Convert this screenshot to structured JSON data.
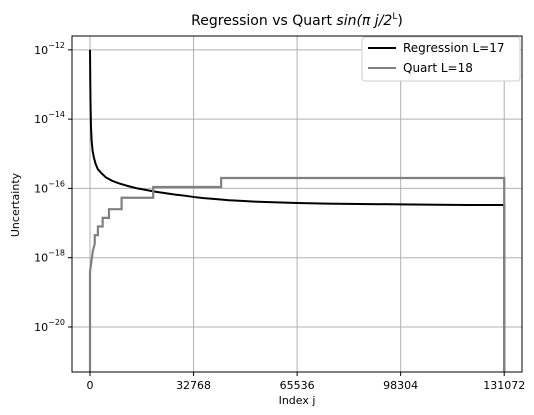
{
  "chart_data": {
    "type": "line",
    "title": {
      "prefix": "Regression vs Quart ",
      "math": "sin(π j/2",
      "superscript": "L",
      "suffix": ")"
    },
    "xlabel": "Index j",
    "ylabel": "Uncertainty",
    "xlim": [
      -5700,
      136700
    ],
    "ylim_log10": [
      -21.3,
      -11.6
    ],
    "y_scale": "log",
    "grid": true,
    "legend_position": "top-right",
    "x_ticks": [
      {
        "value": 0,
        "label": "0"
      },
      {
        "value": 32768,
        "label": "32768"
      },
      {
        "value": 65536,
        "label": "65536"
      },
      {
        "value": 98304,
        "label": "98304"
      },
      {
        "value": 131072,
        "label": "131072"
      }
    ],
    "y_ticks": [
      {
        "value": -12,
        "base": "10",
        "exp": "−12"
      },
      {
        "value": -14,
        "base": "10",
        "exp": "−14"
      },
      {
        "value": -16,
        "base": "10",
        "exp": "−16"
      },
      {
        "value": -18,
        "base": "10",
        "exp": "−18"
      },
      {
        "value": -20,
        "base": "10",
        "exp": "−20"
      }
    ],
    "series": [
      {
        "name": "Regression L=17",
        "color": "#000000",
        "x": [
          0,
          80,
          150,
          300,
          500,
          800,
          1200,
          1800,
          2500,
          3500,
          5000,
          7000,
          9000,
          12000,
          15000,
          18000,
          21000,
          24000,
          27000,
          30000,
          33000,
          36000,
          40000,
          44000,
          48000,
          52000,
          58000,
          65536,
          75000,
          85000,
          98304,
          110000,
          120000,
          131072,
          131072
        ],
        "y_log10": [
          -12.0,
          -12.9,
          -13.5,
          -14.2,
          -14.6,
          -14.9,
          -15.1,
          -15.3,
          -15.45,
          -15.55,
          -15.68,
          -15.78,
          -15.85,
          -15.93,
          -16.0,
          -16.05,
          -16.1,
          -16.14,
          -16.18,
          -16.21,
          -16.25,
          -16.28,
          -16.31,
          -16.34,
          -16.36,
          -16.38,
          -16.4,
          -16.42,
          -16.44,
          -16.45,
          -16.46,
          -16.47,
          -16.48,
          -16.48,
          -21.3
        ]
      },
      {
        "name": "Quart L=18",
        "color": "#808080",
        "x": [
          0,
          0,
          300,
          600,
          900,
          1200,
          1500,
          1500,
          2500,
          2500,
          4000,
          4000,
          6000,
          6000,
          10000,
          10000,
          20000,
          20000,
          41500,
          41500,
          131072,
          131072
        ],
        "y_log10": [
          -21.3,
          -18.4,
          -18.2,
          -18.0,
          -17.8,
          -17.7,
          -17.6,
          -17.35,
          -17.35,
          -17.1,
          -17.1,
          -16.85,
          -16.85,
          -16.6,
          -16.6,
          -16.27,
          -16.27,
          -15.96,
          -15.96,
          -15.7,
          -15.7,
          -21.3
        ]
      }
    ]
  }
}
